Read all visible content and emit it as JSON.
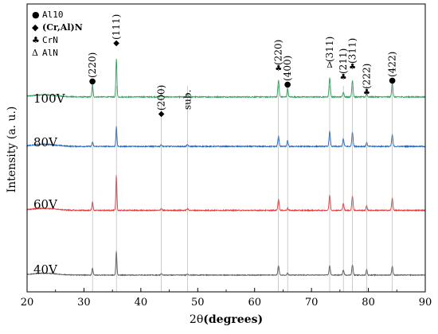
{
  "chart_data": {
    "type": "line",
    "xlabel_prefix": "2θ",
    "xlabel_main": "(degrees)",
    "ylabel": "Intensity (a. u.)",
    "xlim": [
      20,
      90
    ],
    "xticks": [
      20,
      30,
      40,
      50,
      60,
      70,
      80,
      90
    ],
    "yticks": false,
    "grid": false,
    "legend": {
      "placement": "top-left",
      "entries": [
        {
          "symbol": "●",
          "label": "Al10"
        },
        {
          "symbol": "◆",
          "label": "(Cr,Al)N"
        },
        {
          "symbol": "♣",
          "label": "CrN"
        },
        {
          "symbol": "Δ",
          "label": "AlN"
        }
      ]
    },
    "peaks": [
      {
        "pos": 31.5,
        "w": 0.14
      },
      {
        "pos": 35.7,
        "w": 0.13
      },
      {
        "pos": 43.6,
        "w": 0.16
      },
      {
        "pos": 48.2,
        "w": 0.18
      },
      {
        "pos": 64.2,
        "w": 0.16
      },
      {
        "pos": 65.8,
        "w": 0.14
      },
      {
        "pos": 73.2,
        "w": 0.16
      },
      {
        "pos": 75.6,
        "w": 0.16
      },
      {
        "pos": 77.2,
        "w": 0.16
      },
      {
        "pos": 79.7,
        "w": 0.14
      },
      {
        "pos": 84.2,
        "w": 0.16
      }
    ],
    "peak_labels": [
      {
        "pos": 31.5,
        "symbol": "●",
        "text": "(220)"
      },
      {
        "pos": 35.7,
        "symbol": "◆",
        "text": "(111)"
      },
      {
        "pos": 43.6,
        "symbol": "◆",
        "text": "(200)"
      },
      {
        "pos": 48.2,
        "symbol": "",
        "text": "sub."
      },
      {
        "pos": 64.2,
        "symbol": "♣",
        "text": "(220)"
      },
      {
        "pos": 65.8,
        "symbol": "●",
        "text": "(400)"
      },
      {
        "pos": 73.2,
        "symbol": "Δ",
        "text": "(311)"
      },
      {
        "pos": 75.6,
        "symbol": "♣",
        "text": "(211)"
      },
      {
        "pos": 77.2,
        "symbol": "♣",
        "text": "(311)"
      },
      {
        "pos": 79.7,
        "symbol": "♣",
        "text": "(222)"
      },
      {
        "pos": 84.2,
        "symbol": "●",
        "text": "(422)"
      }
    ],
    "series": [
      {
        "name": "100V",
        "color": "#2ca05a",
        "baseline": 0.2,
        "noise": 0.06,
        "heights": [
          1.5,
          4.6,
          0.35,
          0.3,
          2.0,
          1.1,
          2.3,
          0.6,
          2.0,
          0.5,
          1.7
        ]
      },
      {
        "name": "80V",
        "color": "#1f66c6",
        "baseline": 0.18,
        "noise": 0.06,
        "heights": [
          0.55,
          2.4,
          0.2,
          0.2,
          1.2,
          0.7,
          1.8,
          0.9,
          1.7,
          0.5,
          1.4
        ]
      },
      {
        "name": "60V",
        "color": "#e0393c",
        "baseline": 0.15,
        "noise": 0.06,
        "heights": [
          1.1,
          4.4,
          0.25,
          0.2,
          1.4,
          0.3,
          1.9,
          0.9,
          1.8,
          0.6,
          1.5
        ]
      },
      {
        "name": "40V",
        "color": "#555555",
        "baseline": 0.12,
        "noise": 0.05,
        "heights": [
          1.0,
          3.3,
          0.2,
          0.15,
          1.3,
          0.3,
          1.3,
          0.7,
          1.4,
          0.8,
          1.2
        ]
      }
    ]
  }
}
